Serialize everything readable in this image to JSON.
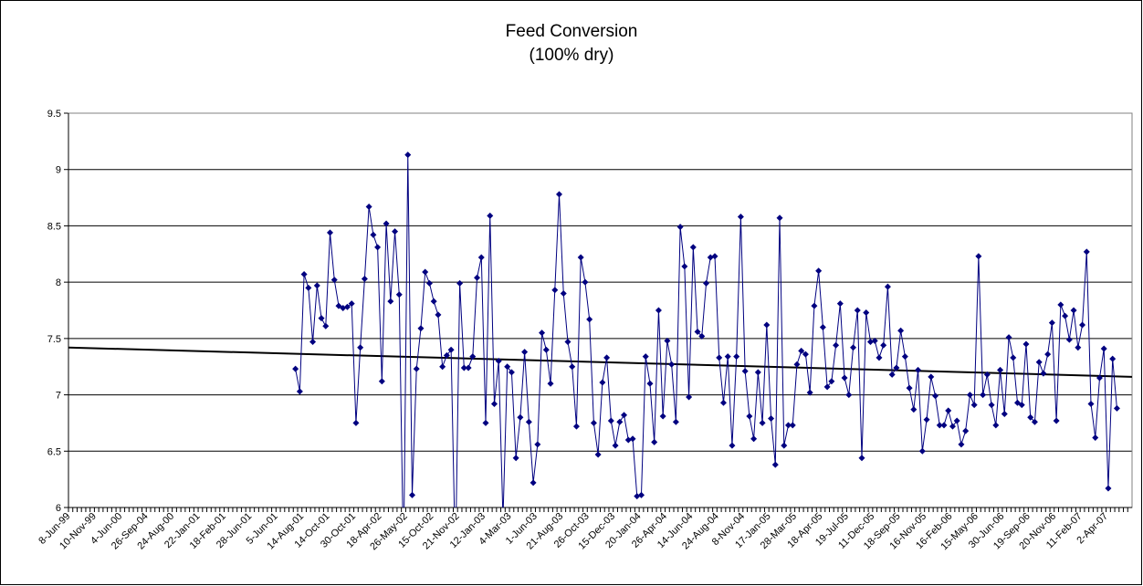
{
  "chart_data": {
    "type": "line",
    "title": "Feed Conversion",
    "subtitle": "(100% dry)",
    "categories": [
      "8-Jun-99",
      null,
      null,
      null,
      null,
      null,
      "10-Nov-99",
      null,
      null,
      null,
      null,
      null,
      "4-Jun-00",
      null,
      null,
      null,
      null,
      null,
      "26-Sep-04",
      null,
      null,
      null,
      null,
      null,
      "24-Aug-00",
      null,
      null,
      null,
      null,
      null,
      "22-Jan-01",
      null,
      null,
      null,
      null,
      null,
      "18-Feb-01",
      null,
      null,
      null,
      null,
      null,
      "28-Jun-01",
      null,
      null,
      null,
      null,
      null,
      "5-Jun-01",
      null,
      null,
      null,
      null,
      null,
      "14-Aug-01",
      null,
      null,
      null,
      null,
      null,
      "14-Oct-01",
      null,
      null,
      null,
      null,
      null,
      "30-Oct-01",
      null,
      null,
      null,
      null,
      null,
      "18-Apr-02",
      null,
      null,
      null,
      null,
      null,
      "26-May-02",
      null,
      null,
      null,
      null,
      null,
      "15-Oct-02",
      null,
      null,
      null,
      null,
      null,
      "21-Nov-02",
      null,
      null,
      null,
      null,
      null,
      "12-Jan-03",
      null,
      null,
      null,
      null,
      null,
      "4-Mar-03",
      null,
      null,
      null,
      null,
      null,
      "1-Jun-03",
      null,
      null,
      null,
      null,
      null,
      "21-Aug-03",
      null,
      null,
      null,
      null,
      null,
      "26-Oct-03",
      null,
      null,
      null,
      null,
      null,
      "15-Dec-03",
      null,
      null,
      null,
      null,
      null,
      "20-Jan-04",
      null,
      null,
      null,
      null,
      null,
      "26-Apr-04",
      null,
      null,
      null,
      null,
      null,
      "14-Jun-04",
      null,
      null,
      null,
      null,
      null,
      "24-Aug-04",
      null,
      null,
      null,
      null,
      null,
      "8-Nov-04",
      null,
      null,
      null,
      null,
      null,
      "17-Jan-05",
      null,
      null,
      null,
      null,
      null,
      "28-Mar-05",
      null,
      null,
      null,
      null,
      null,
      "18-Apr-05",
      null,
      null,
      null,
      null,
      null,
      "19-Jul-05",
      null,
      null,
      null,
      null,
      null,
      "11-Dec-05",
      null,
      null,
      null,
      null,
      null,
      "18-Sep-05",
      null,
      null,
      null,
      null,
      null,
      "16-Nov-05",
      null,
      null,
      null,
      null,
      null,
      "16-Feb-06",
      null,
      null,
      null,
      null,
      null,
      "15-May-06",
      null,
      null,
      null,
      null,
      null,
      "30-Jun-06",
      null,
      null,
      null,
      null,
      null,
      "19-Sep-06",
      null,
      null,
      null,
      null,
      null,
      "20-Nov-06",
      null,
      null,
      null,
      null,
      null,
      "11-Feb-07",
      null,
      null,
      null,
      null,
      null,
      "2-Apr-07",
      null,
      null,
      null,
      null,
      null
    ],
    "values": [
      null,
      null,
      null,
      null,
      null,
      null,
      null,
      null,
      null,
      null,
      null,
      null,
      null,
      null,
      null,
      null,
      null,
      null,
      null,
      null,
      null,
      null,
      null,
      null,
      null,
      null,
      null,
      null,
      null,
      null,
      null,
      null,
      null,
      null,
      null,
      null,
      null,
      null,
      null,
      null,
      null,
      null,
      null,
      null,
      null,
      null,
      null,
      null,
      null,
      null,
      null,
      null,
      7.23,
      7.03,
      8.07,
      7.95,
      7.47,
      7.97,
      7.68,
      7.61,
      8.44,
      8.02,
      7.79,
      7.77,
      7.78,
      7.81,
      6.75,
      7.42,
      8.03,
      8.67,
      8.42,
      8.31,
      7.12,
      8.52,
      7.83,
      8.45,
      7.89,
      5.5,
      9.13,
      6.11,
      7.23,
      7.59,
      8.09,
      7.99,
      7.83,
      7.71,
      7.25,
      7.35,
      7.4,
      5.5,
      7.99,
      7.24,
      7.24,
      7.34,
      8.04,
      8.22,
      6.75,
      8.59,
      6.92,
      7.3,
      5.9,
      7.25,
      7.2,
      6.44,
      6.8,
      7.38,
      6.76,
      6.22,
      6.56,
      7.55,
      7.4,
      7.1,
      7.93,
      8.78,
      7.9,
      7.47,
      7.25,
      6.72,
      8.22,
      8.0,
      7.67,
      6.75,
      6.47,
      7.11,
      7.33,
      6.77,
      6.55,
      6.76,
      6.82,
      6.6,
      6.61,
      6.1,
      6.11,
      7.34,
      7.1,
      6.58,
      7.75,
      6.81,
      7.48,
      7.27,
      6.76,
      8.49,
      8.14,
      6.98,
      8.31,
      7.56,
      7.52,
      7.99,
      8.22,
      8.23,
      7.33,
      6.93,
      7.34,
      6.55,
      7.34,
      8.58,
      7.21,
      6.81,
      6.61,
      7.2,
      6.75,
      7.62,
      6.79,
      6.38,
      8.57,
      6.55,
      6.73,
      6.73,
      7.27,
      7.39,
      7.36,
      7.02,
      7.79,
      8.1,
      7.6,
      7.07,
      7.12,
      7.44,
      7.81,
      7.15,
      7.0,
      7.42,
      7.75,
      6.44,
      7.73,
      7.47,
      7.48,
      7.33,
      7.44,
      7.96,
      7.18,
      7.24,
      7.57,
      7.34,
      7.06,
      6.87,
      7.22,
      6.5,
      6.78,
      7.16,
      6.99,
      6.73,
      6.73,
      6.86,
      6.72,
      6.77,
      6.56,
      6.68,
      7.0,
      6.91,
      8.23,
      7.0,
      7.18,
      6.91,
      6.73,
      7.22,
      6.83,
      7.51,
      7.33,
      6.93,
      6.91,
      7.45,
      6.8,
      6.76,
      7.29,
      7.19,
      7.36,
      7.64,
      6.77,
      7.8,
      7.7,
      7.49,
      7.75,
      7.42,
      7.62,
      8.27,
      6.92,
      6.62,
      7.15,
      7.41,
      6.17,
      7.32,
      6.88,
      null,
      null,
      null
    ],
    "color": "#000080",
    "trendline": {
      "color": "#000000",
      "values": [
        7.42,
        7.16
      ]
    },
    "ylim": [
      6,
      9.5
    ],
    "yticks": [
      6,
      6.5,
      7,
      7.5,
      8,
      8.5,
      9,
      9.5
    ],
    "grid": true
  }
}
